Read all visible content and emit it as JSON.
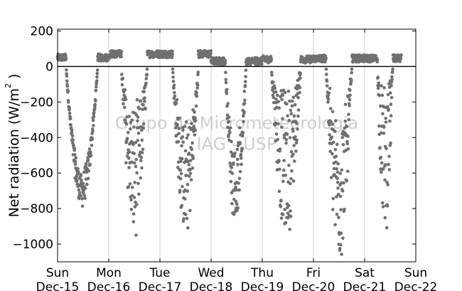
{
  "chart_data": {
    "type": "scatter",
    "title": "",
    "ylabel": "Net radiation (W/m",
    "ylabel_sup": "2",
    "ylabel_close": " )",
    "xlabel": "",
    "ylim": [
      -1100,
      210
    ],
    "xlim": [
      0,
      7
    ],
    "yticks": [
      200,
      0,
      -200,
      -400,
      -600,
      -800,
      -1000
    ],
    "ytick_labels": [
      "200",
      "0",
      "−200",
      "−400",
      "−600",
      "−800",
      "−1000"
    ],
    "xticks": [
      {
        "x": 0,
        "day": "Sun",
        "date": "Dec-15"
      },
      {
        "x": 1,
        "day": "Mon",
        "date": "Dec-16"
      },
      {
        "x": 2,
        "day": "Tue",
        "date": "Dec-17"
      },
      {
        "x": 3,
        "day": "Wed",
        "date": "Dec-18"
      },
      {
        "x": 4,
        "day": "Thu",
        "date": "Dec-19"
      },
      {
        "x": 5,
        "day": "Fri",
        "date": "Dec-20"
      },
      {
        "x": 6,
        "day": "Sat",
        "date": "Dec-21"
      },
      {
        "x": 7,
        "day": "Sun",
        "date": "Dec-22"
      }
    ],
    "vgrid": true,
    "zero_line": true,
    "marker_color": "#707070",
    "watermark": [
      "Grupo de Micrometeorologia",
      "IAG - USP"
    ],
    "days": [
      {
        "start": 0.0,
        "day_start": 0.17,
        "day_end": 0.78,
        "day_low": -780,
        "day_high": -600,
        "spread": 60,
        "night": 50
      },
      {
        "start": 1.0,
        "day_start": 1.25,
        "day_end": 1.75,
        "day_low": -950,
        "day_high": -250,
        "spread": 220,
        "night": 70
      },
      {
        "start": 2.0,
        "day_start": 2.25,
        "day_end": 2.75,
        "day_low": -930,
        "day_high": -350,
        "spread": 200,
        "night": 70
      },
      {
        "start": 3.0,
        "day_start": 3.28,
        "day_end": 3.68,
        "day_low": -880,
        "day_high": -450,
        "spread": 150,
        "night": 30
      },
      {
        "start": 4.0,
        "day_start": 4.18,
        "day_end": 4.75,
        "day_low": -950,
        "day_high": -150,
        "spread": 200,
        "night": 40
      },
      {
        "start": 5.0,
        "day_start": 5.25,
        "day_end": 5.75,
        "day_low": -1080,
        "day_high": -300,
        "spread": 260,
        "night": 45
      },
      {
        "start": 6.0,
        "day_start": 6.25,
        "day_end": 6.55,
        "day_low": -940,
        "day_high": -120,
        "spread": 200,
        "night": 45
      }
    ]
  }
}
